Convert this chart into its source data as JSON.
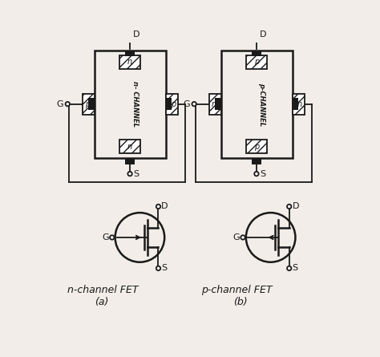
{
  "bg_color": "#f2ede8",
  "line_color": "#1a1a1a",
  "label_nchannel_fet": "n-channel FET",
  "label_pchannel_fet": "p-channel FET",
  "label_a": "(a)",
  "label_b": "(b)"
}
